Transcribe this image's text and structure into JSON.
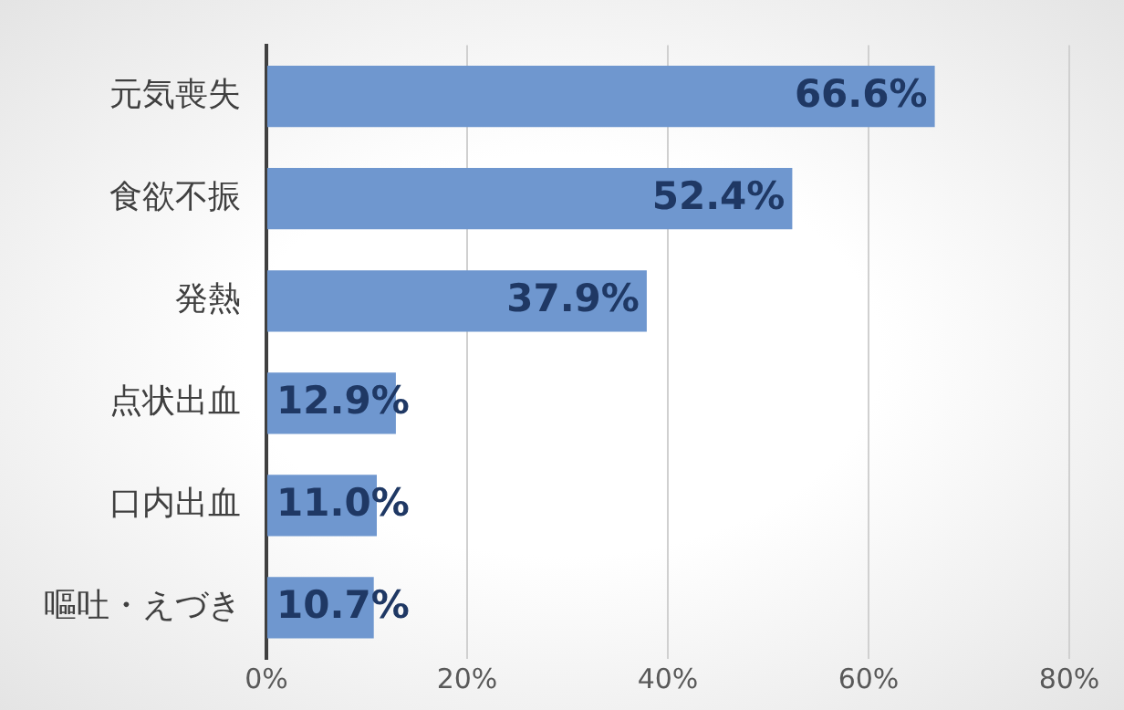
{
  "chart_data": {
    "type": "bar",
    "orientation": "horizontal",
    "categories": [
      "元気喪失",
      "食欲不振",
      "発熱",
      "点状出血",
      "口内出血",
      "嘔吐・えづき"
    ],
    "values": [
      66.6,
      52.4,
      37.9,
      12.9,
      11.0,
      10.7
    ],
    "value_labels": [
      "66.6%",
      "52.4%",
      "37.9%",
      "12.9%",
      "11.0%",
      "10.7%"
    ],
    "color": "#6f97cf",
    "xlim": [
      0,
      80
    ],
    "xticks": [
      {
        "value": 0,
        "label": "0%"
      },
      {
        "value": 20,
        "label": "20%"
      },
      {
        "value": 40,
        "label": "40%"
      },
      {
        "value": 60,
        "label": "60%"
      },
      {
        "value": 80,
        "label": "80%"
      }
    ],
    "grid": "x",
    "legend": false
  }
}
